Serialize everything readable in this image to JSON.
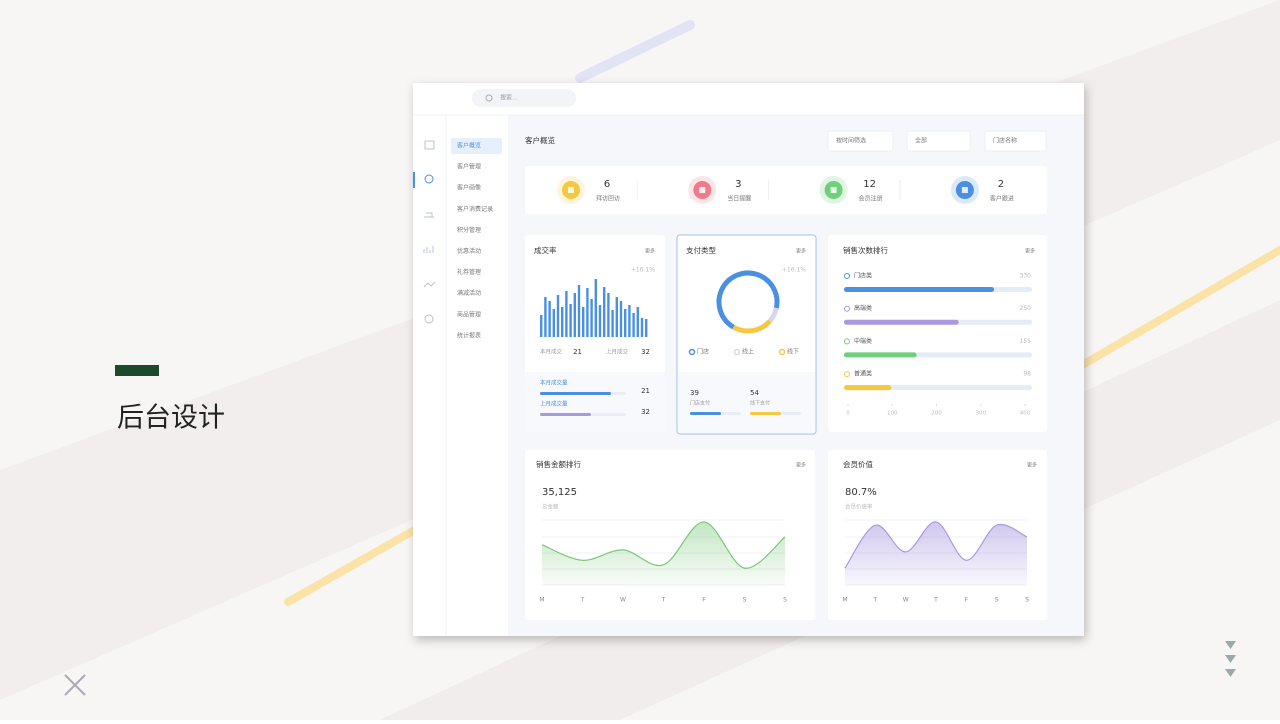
{
  "slide": {
    "title": "后台设计"
  },
  "dashboard": {
    "search_placeholder": "搜索...",
    "menu": [
      "客户概览",
      "客户管理",
      "客户画像",
      "客户消费记录",
      "积分管理",
      "优惠活动",
      "礼券管理",
      "满减活动",
      "商品管理",
      "统计报表"
    ],
    "page_title": "客户概览",
    "filters": [
      "按时间筛选",
      "全部",
      "门店名称"
    ],
    "stats": [
      {
        "value": 6,
        "label": "拜访回访",
        "color": "#f5c842"
      },
      {
        "value": 3,
        "label": "当日提醒",
        "color": "#ef7b8a"
      },
      {
        "value": 12,
        "label": "会员注册",
        "color": "#6fcf7a"
      },
      {
        "value": 2,
        "label": "客户跟进",
        "color": "#4a90e2"
      }
    ],
    "deal_rate": {
      "type": "bar",
      "title": "成交率",
      "more": "更多",
      "change": "+16.1%",
      "color": "#4a90e2",
      "values": [
        22,
        40,
        36,
        28,
        42,
        30,
        46,
        33,
        44,
        52,
        30,
        49,
        38,
        58,
        32,
        50,
        44,
        27,
        40,
        36,
        28,
        32,
        24,
        30,
        19,
        18
      ],
      "summary": [
        {
          "label": "本月成交",
          "value": 21
        },
        {
          "label": "上月成交",
          "value": 32
        }
      ],
      "volume": [
        {
          "label": "本月成交量",
          "value": 21,
          "color": "#4a90e2"
        },
        {
          "label": "上月成交量",
          "value": 32,
          "color": "#a99ae0"
        }
      ]
    },
    "payment": {
      "type": "pie",
      "title": "支付类型",
      "more": "更多",
      "change": "+16.1%",
      "series": [
        {
          "name": "门店",
          "color": "#4a90e2",
          "value": 70
        },
        {
          "name": "线上",
          "color": "#d9d4f2",
          "value": 8
        },
        {
          "name": "线下",
          "color": "#f5c842",
          "value": 22
        }
      ],
      "totals": [
        {
          "value": 39,
          "label": "门店支付",
          "color": "#4a90e2"
        },
        {
          "value": 54,
          "label": "线下支付",
          "color": "#f5c842"
        }
      ]
    },
    "sales_count": {
      "type": "bar",
      "title": "销售次数排行",
      "more": "更多",
      "categories": [
        "门店类",
        "高端类",
        "中端类",
        "普通类"
      ],
      "values": [
        330,
        250,
        155,
        98
      ],
      "colors": [
        "#4a90e2",
        "#a99ae0",
        "#6fcf7a",
        "#f5c842"
      ],
      "xlim": [
        0,
        400
      ],
      "xticks": [
        0,
        100,
        200,
        300,
        400
      ]
    },
    "sales_amount": {
      "type": "area",
      "title": "销售金额排行",
      "more": "更多",
      "total": "35,125",
      "total_label": "总金额",
      "x": [
        "M",
        "T",
        "W",
        "T",
        "F",
        "S",
        "S"
      ],
      "values": [
        62,
        38,
        54,
        31,
        97,
        26,
        74
      ],
      "color": "#7bc77b"
    },
    "member_value": {
      "type": "area",
      "title": "会员价值",
      "more": "更多",
      "rate": "80.7%",
      "rate_label": "会员价值率",
      "x": [
        "M",
        "T",
        "W",
        "T",
        "F",
        "S",
        "S"
      ],
      "values": [
        26,
        92,
        51,
        97,
        38,
        92,
        74
      ],
      "color": "#a99ae0"
    }
  }
}
